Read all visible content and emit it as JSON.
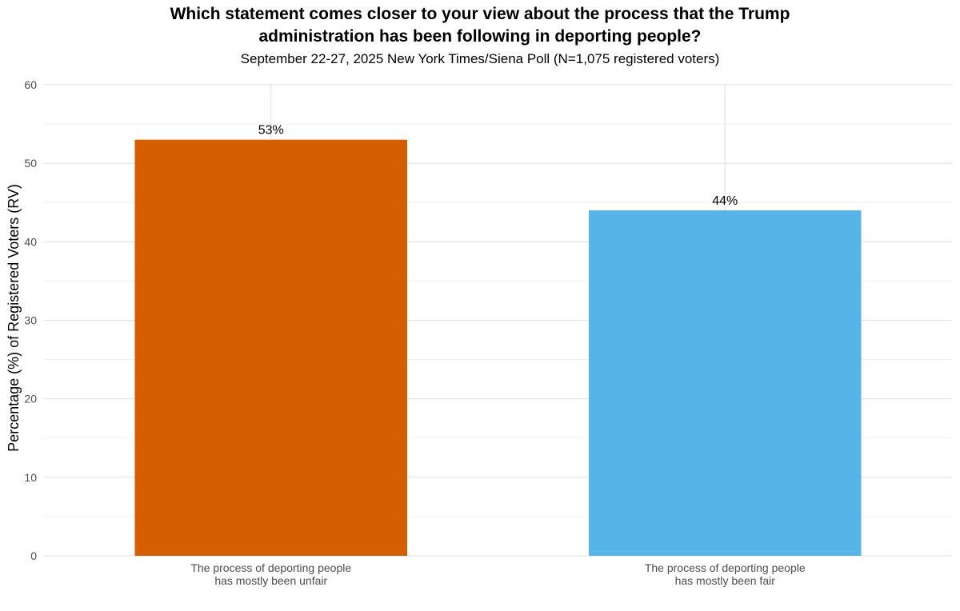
{
  "chart_data": {
    "type": "bar",
    "title_lines": [
      "Which statement comes closer to your view about the process that the Trump",
      "administration has been following in deporting people?"
    ],
    "subtitle": "September 22-27, 2025 New York Times/Siena Poll (N=1,075 registered voters)",
    "ylabel": "Percentage (%) of Registered Voters (RV)",
    "xlabel": "",
    "ylim": [
      0,
      60
    ],
    "yticks": [
      0,
      10,
      20,
      30,
      40,
      50,
      60
    ],
    "grid": true,
    "categories": [
      [
        "The process of deporting people",
        "has mostly been unfair"
      ],
      [
        "The process of deporting people",
        "has mostly been fair"
      ]
    ],
    "values": [
      53,
      44
    ],
    "labels": [
      "53%",
      "44%"
    ],
    "colors": [
      "#D55E00",
      "#56B4E9"
    ]
  }
}
